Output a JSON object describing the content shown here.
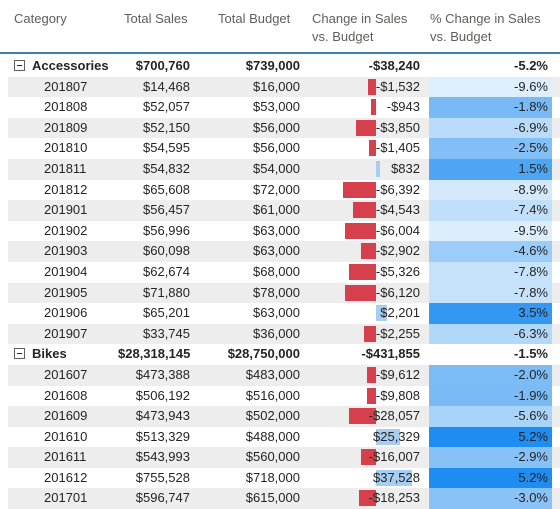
{
  "headers": {
    "category": "Category",
    "total_sales": "Total Sales",
    "total_budget": "Total Budget",
    "change": "Change in Sales vs. Budget",
    "pct_change": "% Change in Sales vs. Budget"
  },
  "colors": {
    "accent_line": "#3c7fb1",
    "neg_bar": "#d6404c",
    "pos_bar": "#a7cdf2",
    "heat_dark": "#1e8cf0",
    "heat_light": "#ddeefc"
  },
  "rows": [
    {
      "type": "group",
      "label": "Accessories",
      "sales": "$700,760",
      "budget": "$739,000",
      "change": "-$38,240",
      "change_value": -38240,
      "pct": "-5.2%",
      "pct_value": -5.2
    },
    {
      "type": "item",
      "label": "201807",
      "sales": "$14,468",
      "budget": "$16,000",
      "change": "-$1,532",
      "change_value": -1532,
      "pct": "-9.6%",
      "pct_value": -9.6
    },
    {
      "type": "item",
      "label": "201808",
      "sales": "$52,057",
      "budget": "$53,000",
      "change": "-$943",
      "change_value": -943,
      "pct": "-1.8%",
      "pct_value": -1.8
    },
    {
      "type": "item",
      "label": "201809",
      "sales": "$52,150",
      "budget": "$56,000",
      "change": "-$3,850",
      "change_value": -3850,
      "pct": "-6.9%",
      "pct_value": -6.9
    },
    {
      "type": "item",
      "label": "201810",
      "sales": "$54,595",
      "budget": "$56,000",
      "change": "-$1,405",
      "change_value": -1405,
      "pct": "-2.5%",
      "pct_value": -2.5
    },
    {
      "type": "item",
      "label": "201811",
      "sales": "$54,832",
      "budget": "$54,000",
      "change": "$832",
      "change_value": 832,
      "pct": "1.5%",
      "pct_value": 1.5
    },
    {
      "type": "item",
      "label": "201812",
      "sales": "$65,608",
      "budget": "$72,000",
      "change": "-$6,392",
      "change_value": -6392,
      "pct": "-8.9%",
      "pct_value": -8.9
    },
    {
      "type": "item",
      "label": "201901",
      "sales": "$56,457",
      "budget": "$61,000",
      "change": "-$4,543",
      "change_value": -4543,
      "pct": "-7.4%",
      "pct_value": -7.4
    },
    {
      "type": "item",
      "label": "201902",
      "sales": "$56,996",
      "budget": "$63,000",
      "change": "-$6,004",
      "change_value": -6004,
      "pct": "-9.5%",
      "pct_value": -9.5
    },
    {
      "type": "item",
      "label": "201903",
      "sales": "$60,098",
      "budget": "$63,000",
      "change": "-$2,902",
      "change_value": -2902,
      "pct": "-4.6%",
      "pct_value": -4.6
    },
    {
      "type": "item",
      "label": "201904",
      "sales": "$62,674",
      "budget": "$68,000",
      "change": "-$5,326",
      "change_value": -5326,
      "pct": "-7.8%",
      "pct_value": -7.8
    },
    {
      "type": "item",
      "label": "201905",
      "sales": "$71,880",
      "budget": "$78,000",
      "change": "-$6,120",
      "change_value": -6120,
      "pct": "-7.8%",
      "pct_value": -7.8
    },
    {
      "type": "item",
      "label": "201906",
      "sales": "$65,201",
      "budget": "$63,000",
      "change": "$2,201",
      "change_value": 2201,
      "pct": "3.5%",
      "pct_value": 3.5
    },
    {
      "type": "item",
      "label": "201907",
      "sales": "$33,745",
      "budget": "$36,000",
      "change": "-$2,255",
      "change_value": -2255,
      "pct": "-6.3%",
      "pct_value": -6.3
    },
    {
      "type": "group",
      "label": "Bikes",
      "sales": "$28,318,145",
      "budget": "$28,750,000",
      "change": "-$431,855",
      "change_value": -431855,
      "pct": "-1.5%",
      "pct_value": -1.5
    },
    {
      "type": "item",
      "label": "201607",
      "sales": "$473,388",
      "budget": "$483,000",
      "change": "-$9,612",
      "change_value": -9612,
      "pct": "-2.0%",
      "pct_value": -2.0
    },
    {
      "type": "item",
      "label": "201608",
      "sales": "$506,192",
      "budget": "$516,000",
      "change": "-$9,808",
      "change_value": -9808,
      "pct": "-1.9%",
      "pct_value": -1.9
    },
    {
      "type": "item",
      "label": "201609",
      "sales": "$473,943",
      "budget": "$502,000",
      "change": "-$28,057",
      "change_value": -28057,
      "pct": "-5.6%",
      "pct_value": -5.6
    },
    {
      "type": "item",
      "label": "201610",
      "sales": "$513,329",
      "budget": "$488,000",
      "change": "$25,329",
      "change_value": 25329,
      "pct": "5.2%",
      "pct_value": 5.2
    },
    {
      "type": "item",
      "label": "201611",
      "sales": "$543,993",
      "budget": "$560,000",
      "change": "-$16,007",
      "change_value": -16007,
      "pct": "-2.9%",
      "pct_value": -2.9
    },
    {
      "type": "item",
      "label": "201612",
      "sales": "$755,528",
      "budget": "$718,000",
      "change": "$37,528",
      "change_value": 37528,
      "pct": "5.2%",
      "pct_value": 5.2
    },
    {
      "type": "item",
      "label": "201701",
      "sales": "$596,747",
      "budget": "$615,000",
      "change": "-$18,253",
      "change_value": -18253,
      "pct": "-3.0%",
      "pct_value": -3.0
    }
  ]
}
